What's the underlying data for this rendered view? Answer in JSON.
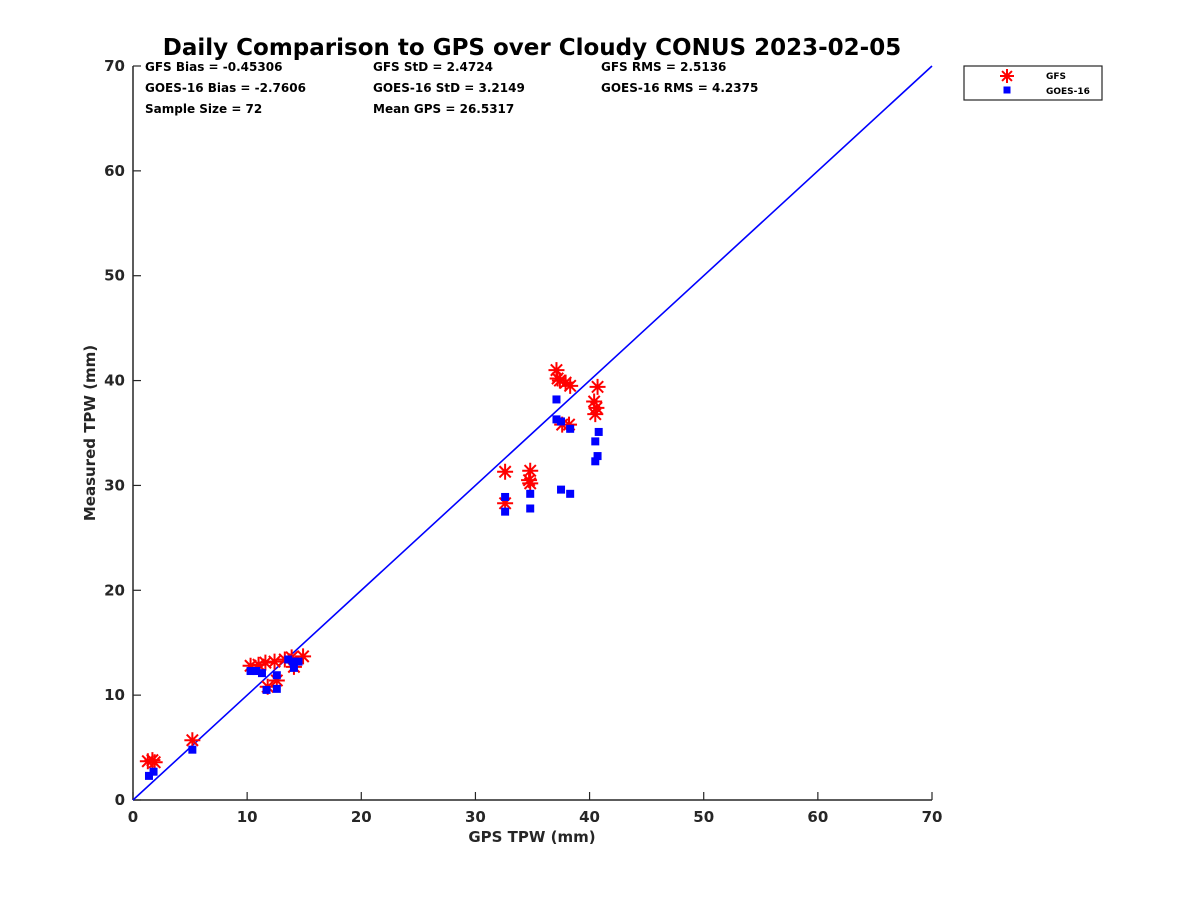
{
  "chart_data": {
    "type": "scatter",
    "title": "Daily Comparison to GPS over Cloudy CONUS 2023-02-05",
    "xlabel": "GPS TPW (mm)",
    "ylabel": "Measured TPW (mm)",
    "xlim": [
      0,
      70
    ],
    "ylim": [
      0,
      70
    ],
    "xticks": [
      0,
      10,
      20,
      30,
      40,
      50,
      60,
      70
    ],
    "yticks": [
      0,
      10,
      20,
      30,
      40,
      50,
      60,
      70
    ],
    "grid": false,
    "legend_position": "outside-top-right",
    "stats": [
      "GFS Bias = -0.45306",
      "GFS StD = 2.4724",
      "GFS RMS = 2.5136",
      "GOES-16 Bias = -2.7606",
      "GOES-16 StD = 3.2149",
      "GOES-16 RMS = 4.2375",
      "Sample Size = 72",
      "Mean GPS = 26.5317"
    ],
    "reference_line": {
      "name": "1:1",
      "x": [
        0,
        70
      ],
      "y": [
        0,
        70
      ],
      "color": "#0000ff"
    },
    "series": [
      {
        "name": "GFS",
        "marker": "asterisk",
        "color": "#ff0000",
        "points": [
          [
            1.3,
            3.7
          ],
          [
            1.7,
            3.8
          ],
          [
            1.9,
            3.6
          ],
          [
            5.2,
            5.7
          ],
          [
            10.3,
            12.8
          ],
          [
            11.0,
            12.9
          ],
          [
            11.6,
            13.1
          ],
          [
            12.4,
            13.2
          ],
          [
            13.3,
            13.4
          ],
          [
            13.9,
            13.6
          ],
          [
            14.9,
            13.7
          ],
          [
            11.8,
            10.8
          ],
          [
            12.6,
            11.4
          ],
          [
            14.1,
            12.7
          ],
          [
            32.6,
            31.3
          ],
          [
            32.6,
            28.3
          ],
          [
            34.8,
            31.4
          ],
          [
            34.8,
            30.2
          ],
          [
            34.7,
            30.5
          ],
          [
            37.1,
            41.0
          ],
          [
            37.2,
            40.2
          ],
          [
            37.4,
            40.0
          ],
          [
            37.9,
            39.8
          ],
          [
            38.3,
            39.5
          ],
          [
            40.7,
            39.4
          ],
          [
            40.4,
            38.0
          ],
          [
            40.6,
            37.4
          ],
          [
            40.5,
            36.8
          ],
          [
            37.6,
            35.8
          ],
          [
            38.2,
            35.8
          ]
        ]
      },
      {
        "name": "GOES-16",
        "marker": "square",
        "color": "#0000ff",
        "points": [
          [
            1.4,
            2.3
          ],
          [
            1.8,
            2.7
          ],
          [
            5.2,
            4.8
          ],
          [
            10.3,
            12.3
          ],
          [
            10.8,
            12.3
          ],
          [
            11.3,
            12.1
          ],
          [
            11.7,
            10.5
          ],
          [
            12.6,
            10.6
          ],
          [
            12.6,
            11.9
          ],
          [
            13.6,
            13.4
          ],
          [
            14.0,
            13.2
          ],
          [
            14.5,
            13.2
          ],
          [
            14.1,
            12.6
          ],
          [
            32.6,
            28.9
          ],
          [
            32.6,
            27.5
          ],
          [
            34.8,
            29.2
          ],
          [
            34.8,
            27.8
          ],
          [
            37.1,
            38.2
          ],
          [
            37.1,
            36.3
          ],
          [
            37.5,
            36.1
          ],
          [
            38.3,
            35.4
          ],
          [
            37.5,
            29.6
          ],
          [
            38.3,
            29.2
          ],
          [
            40.8,
            35.1
          ],
          [
            40.5,
            34.2
          ],
          [
            40.7,
            32.8
          ],
          [
            40.5,
            32.3
          ]
        ]
      }
    ]
  }
}
